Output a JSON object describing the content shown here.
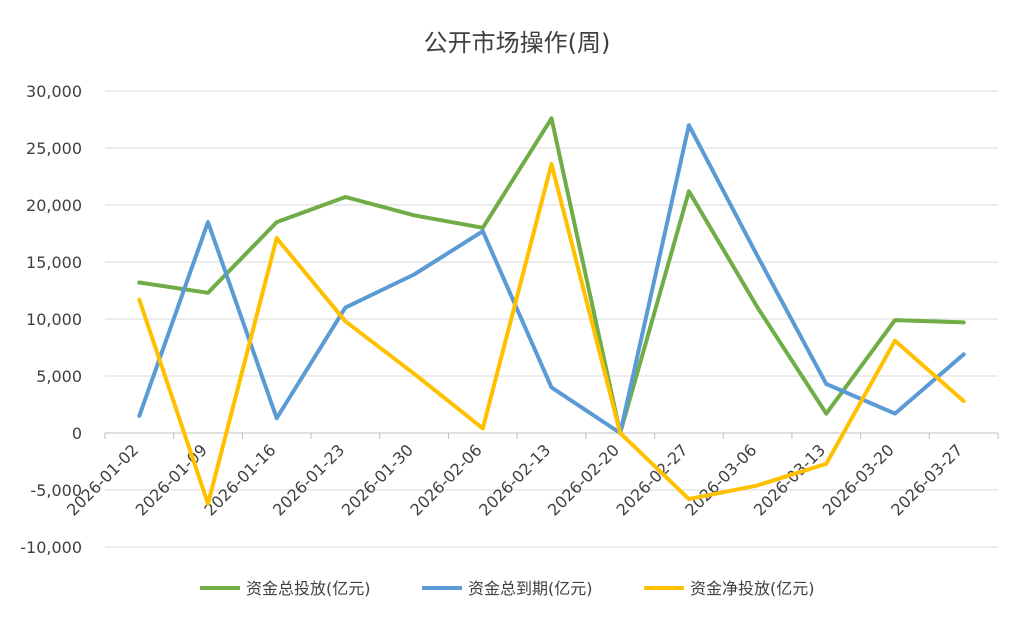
{
  "chart_data": {
    "type": "line",
    "title": "公开市场操作(周)",
    "xlabel": "",
    "ylabel": "",
    "ylim": [
      -10000,
      30000
    ],
    "yticks": [
      30000,
      25000,
      20000,
      15000,
      10000,
      5000,
      0,
      -5000,
      -10000
    ],
    "ytick_labels": [
      "30,000",
      "25,000",
      "20,000",
      "15,000",
      "10,000",
      "5,000",
      "0",
      "-5,000",
      "-10,000"
    ],
    "grid": true,
    "legend_position": "bottom",
    "categories": [
      "2026-01-02",
      "2026-01-09",
      "2026-01-16",
      "2026-01-23",
      "2026-01-30",
      "2026-02-06",
      "2026-02-13",
      "2026-02-20",
      "2026-02-27",
      "2026-03-06",
      "2026-03-13",
      "2026-03-20",
      "2026-03-27"
    ],
    "series": [
      {
        "name": "资金总投放(亿元)",
        "color": "#70AD47",
        "values": [
          13200,
          12300,
          18500,
          20700,
          19100,
          18000,
          27600,
          0,
          21200,
          11000,
          1700,
          9900,
          9700
        ]
      },
      {
        "name": "资金总到期(亿元)",
        "color": "#5B9BD5",
        "values": [
          1500,
          18500,
          1300,
          11000,
          13900,
          17700,
          4000,
          0,
          27000,
          15500,
          4300,
          1700,
          6900
        ]
      },
      {
        "name": "资金净投放(亿元)",
        "color": "#FFC000",
        "values": [
          11700,
          -6200,
          17100,
          9800,
          5200,
          400,
          23600,
          0,
          -5800,
          -4600,
          -2700,
          8100,
          2800
        ]
      }
    ]
  }
}
